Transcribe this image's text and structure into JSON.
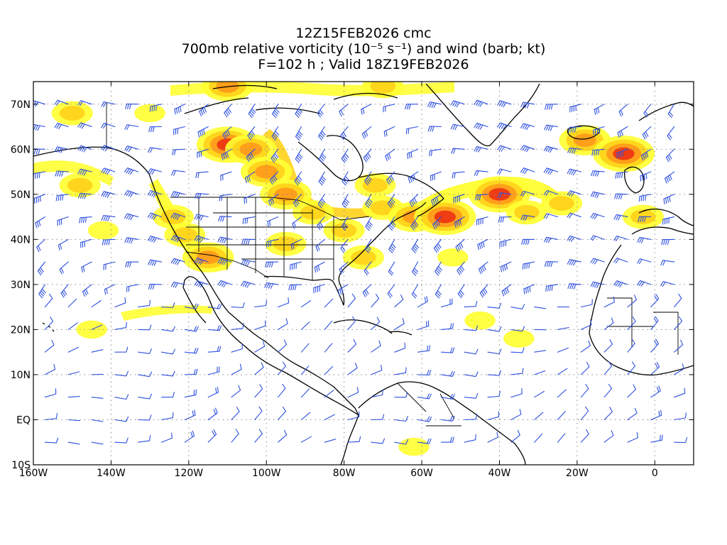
{
  "title": {
    "line1": "12Z15FEB2026 cmc",
    "line2": "700mb relative vorticity (10⁻⁵ s⁻¹) and wind (barb; kt)",
    "line3": "F=102 h ; Valid 18Z19FEB2026"
  },
  "axes": {
    "lat_labels": [
      "70N",
      "60N",
      "50N",
      "40N",
      "30N",
      "20N",
      "10N",
      "EQ",
      "10S"
    ],
    "lat_values": [
      70,
      60,
      50,
      40,
      30,
      20,
      10,
      0,
      -10
    ],
    "lon_labels": [
      "160W",
      "140W",
      "120W",
      "100W",
      "80W",
      "60W",
      "40W",
      "20W",
      "0"
    ],
    "lon_values": [
      -160,
      -140,
      -120,
      -100,
      -80,
      -60,
      -40,
      -20,
      0
    ],
    "lon_range": [
      -160,
      10
    ],
    "lat_range": [
      -10,
      75
    ],
    "grid": "dotted"
  },
  "colors": {
    "vort_low": "#ffff33",
    "vort_mid": "#ffd21a",
    "vort_high": "#ff9a1a",
    "vort_max": "#ee3311",
    "barb": "#2d4fe0",
    "coast": "#000000"
  },
  "vorticity_blobs": [
    {
      "lon": -124,
      "lat": 45,
      "lvl": 2
    },
    {
      "lon": -121,
      "lat": 41,
      "lvl": 2
    },
    {
      "lon": -115,
      "lat": 36,
      "lvl": 3
    },
    {
      "lon": -110,
      "lat": 61,
      "lvl": 4
    },
    {
      "lon": -104,
      "lat": 60,
      "lvl": 3
    },
    {
      "lon": -100,
      "lat": 55,
      "lvl": 3
    },
    {
      "lon": -95,
      "lat": 50,
      "lvl": 3
    },
    {
      "lon": -88,
      "lat": 46,
      "lvl": 2
    },
    {
      "lon": -80,
      "lat": 42,
      "lvl": 2
    },
    {
      "lon": -70,
      "lat": 47,
      "lvl": 2
    },
    {
      "lon": -62,
      "lat": 45,
      "lvl": 3
    },
    {
      "lon": -54,
      "lat": 45,
      "lvl": 4
    },
    {
      "lon": -40,
      "lat": 50,
      "lvl": 4
    },
    {
      "lon": -33,
      "lat": 46,
      "lvl": 2
    },
    {
      "lon": -24,
      "lat": 48,
      "lvl": 2
    },
    {
      "lon": -18,
      "lat": 62,
      "lvl": 3
    },
    {
      "lon": -8,
      "lat": 59,
      "lvl": 4
    },
    {
      "lon": -150,
      "lat": 68,
      "lvl": 2
    },
    {
      "lon": -148,
      "lat": 52,
      "lvl": 2
    },
    {
      "lon": -142,
      "lat": 42,
      "lvl": 1
    },
    {
      "lon": -145,
      "lat": 20,
      "lvl": 1
    },
    {
      "lon": -72,
      "lat": 52,
      "lvl": 2
    },
    {
      "lon": -45,
      "lat": 22,
      "lvl": 1
    },
    {
      "lon": -35,
      "lat": 18,
      "lvl": 1
    },
    {
      "lon": -62,
      "lat": -6,
      "lvl": 1
    },
    {
      "lon": -110,
      "lat": 74,
      "lvl": 3
    },
    {
      "lon": -70,
      "lat": 74,
      "lvl": 2
    },
    {
      "lon": -130,
      "lat": 68,
      "lvl": 1
    },
    {
      "lon": -75,
      "lat": 36,
      "lvl": 2
    },
    {
      "lon": -95,
      "lat": 39,
      "lvl": 2
    },
    {
      "lon": -52,
      "lat": 36,
      "lvl": 1
    },
    {
      "lon": -3,
      "lat": 45,
      "lvl": 2
    }
  ]
}
